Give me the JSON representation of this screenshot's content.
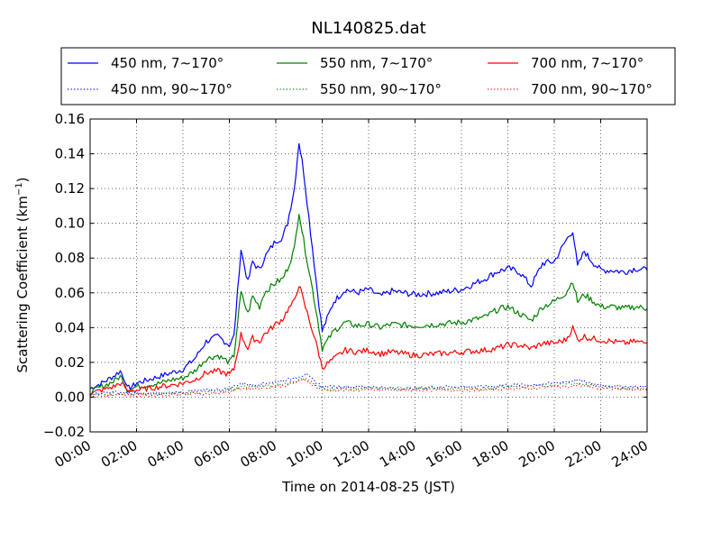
{
  "chart_data": {
    "type": "line",
    "title": "NL140825.dat",
    "xlabel": "Time on 2014-08-25 (JST)",
    "ylabel_main": "Scattering Coefficient (km",
    "ylabel_exp": "−1",
    "ylabel_tail": ")",
    "x_unit": "hour",
    "xlim": [
      0,
      24
    ],
    "ylim": [
      -0.02,
      0.16
    ],
    "grid": true,
    "legend_position": "above plot, three columns",
    "x_ticks": [
      {
        "value": 0,
        "label": "00:00"
      },
      {
        "value": 2,
        "label": "02:00"
      },
      {
        "value": 4,
        "label": "04:00"
      },
      {
        "value": 6,
        "label": "06:00"
      },
      {
        "value": 8,
        "label": "08:00"
      },
      {
        "value": 10,
        "label": "10:00"
      },
      {
        "value": 12,
        "label": "12:00"
      },
      {
        "value": 14,
        "label": "14:00"
      },
      {
        "value": 16,
        "label": "16:00"
      },
      {
        "value": 18,
        "label": "18:00"
      },
      {
        "value": 20,
        "label": "20:00"
      },
      {
        "value": 22,
        "label": "22:00"
      },
      {
        "value": 24,
        "label": "24:00"
      }
    ],
    "y_ticks": [
      {
        "value": -0.02,
        "label": "−0.02"
      },
      {
        "value": 0.0,
        "label": "0.00"
      },
      {
        "value": 0.02,
        "label": "0.02"
      },
      {
        "value": 0.04,
        "label": "0.04"
      },
      {
        "value": 0.06,
        "label": "0.06"
      },
      {
        "value": 0.08,
        "label": "0.08"
      },
      {
        "value": 0.1,
        "label": "0.10"
      },
      {
        "value": 0.12,
        "label": "0.12"
      },
      {
        "value": 0.14,
        "label": "0.14"
      },
      {
        "value": 0.16,
        "label": "0.16"
      }
    ],
    "series": [
      {
        "name": "450 nm, 7∼170°",
        "color": "#0000ff",
        "style": "solid",
        "x": [
          0,
          0.5,
          1,
          1.3,
          1.5,
          1.6,
          1.8,
          2,
          2.5,
          3,
          3.5,
          4,
          4.5,
          5,
          5.5,
          6,
          6.2,
          6.5,
          6.8,
          7,
          7.3,
          7.5,
          8,
          8.3,
          8.5,
          8.8,
          9,
          9.2,
          9.5,
          9.8,
          10,
          10.5,
          11,
          11.5,
          12,
          12.5,
          13,
          14,
          15,
          16,
          17,
          17.5,
          18,
          18.5,
          19,
          19.5,
          20,
          20.5,
          20.8,
          21,
          21.3,
          21.5,
          22,
          22.5,
          23,
          23.5,
          24
        ],
        "y": [
          0.005,
          0.008,
          0.012,
          0.015,
          0.01,
          0.005,
          0.006,
          0.008,
          0.01,
          0.012,
          0.014,
          0.016,
          0.022,
          0.032,
          0.035,
          0.03,
          0.035,
          0.085,
          0.066,
          0.078,
          0.073,
          0.08,
          0.09,
          0.092,
          0.1,
          0.12,
          0.147,
          0.13,
          0.095,
          0.06,
          0.038,
          0.055,
          0.062,
          0.06,
          0.062,
          0.058,
          0.061,
          0.059,
          0.06,
          0.062,
          0.068,
          0.072,
          0.074,
          0.072,
          0.064,
          0.077,
          0.078,
          0.09,
          0.096,
          0.075,
          0.084,
          0.08,
          0.073,
          0.073,
          0.072,
          0.074,
          0.073
        ]
      },
      {
        "name": "550 nm, 7∼170°",
        "color": "#008000",
        "style": "solid",
        "x": [
          0,
          0.5,
          1,
          1.3,
          1.5,
          1.6,
          1.8,
          2,
          2.5,
          3,
          3.5,
          4,
          4.5,
          5,
          5.5,
          6,
          6.2,
          6.5,
          6.8,
          7,
          7.3,
          7.5,
          8,
          8.3,
          8.5,
          8.8,
          9,
          9.2,
          9.5,
          9.8,
          10,
          10.5,
          11,
          11.5,
          12,
          12.5,
          13,
          14,
          15,
          16,
          17,
          17.5,
          18,
          18.5,
          19,
          19.5,
          20,
          20.5,
          20.8,
          21,
          21.3,
          21.5,
          22,
          22.5,
          23,
          23.5,
          24
        ],
        "y": [
          0.003,
          0.006,
          0.009,
          0.012,
          0.008,
          0.004,
          0.005,
          0.006,
          0.007,
          0.008,
          0.01,
          0.011,
          0.015,
          0.022,
          0.024,
          0.02,
          0.024,
          0.06,
          0.048,
          0.058,
          0.052,
          0.06,
          0.066,
          0.068,
          0.074,
          0.085,
          0.107,
          0.09,
          0.068,
          0.045,
          0.028,
          0.038,
          0.043,
          0.041,
          0.042,
          0.04,
          0.042,
          0.041,
          0.042,
          0.043,
          0.046,
          0.05,
          0.052,
          0.048,
          0.044,
          0.052,
          0.055,
          0.06,
          0.067,
          0.055,
          0.059,
          0.057,
          0.052,
          0.052,
          0.051,
          0.052,
          0.051
        ]
      },
      {
        "name": "700 nm, 7∼170°",
        "color": "#ff0000",
        "style": "solid",
        "x": [
          0,
          0.5,
          1,
          1.3,
          1.5,
          1.6,
          1.8,
          2,
          2.5,
          3,
          3.5,
          4,
          4.5,
          5,
          5.5,
          6,
          6.2,
          6.5,
          6.8,
          7,
          7.3,
          7.5,
          8,
          8.3,
          8.5,
          8.8,
          9,
          9.2,
          9.5,
          9.8,
          10,
          10.5,
          11,
          11.5,
          12,
          12.5,
          13,
          14,
          15,
          16,
          17,
          17.5,
          18,
          18.5,
          19,
          19.5,
          20,
          20.5,
          20.8,
          21,
          21.3,
          21.5,
          22,
          22.5,
          23,
          23.5,
          24
        ],
        "y": [
          0.002,
          0.004,
          0.006,
          0.008,
          0.006,
          0.003,
          0.004,
          0.004,
          0.005,
          0.006,
          0.007,
          0.008,
          0.01,
          0.014,
          0.015,
          0.013,
          0.016,
          0.036,
          0.028,
          0.034,
          0.032,
          0.036,
          0.042,
          0.045,
          0.05,
          0.055,
          0.065,
          0.055,
          0.042,
          0.028,
          0.017,
          0.022,
          0.027,
          0.026,
          0.027,
          0.025,
          0.026,
          0.024,
          0.025,
          0.026,
          0.027,
          0.028,
          0.03,
          0.03,
          0.028,
          0.031,
          0.031,
          0.033,
          0.04,
          0.033,
          0.035,
          0.034,
          0.033,
          0.032,
          0.031,
          0.032,
          0.031
        ]
      },
      {
        "name": "450 nm, 90∼170°",
        "color": "#0000ff",
        "style": "dotted",
        "x": [
          0,
          1,
          2,
          3,
          4,
          5,
          6,
          6.5,
          7,
          8,
          8.5,
          9,
          9.3,
          9.6,
          10,
          11,
          12,
          13,
          14,
          15,
          16,
          17,
          18,
          19,
          20,
          20.5,
          21,
          21.5,
          22,
          23,
          24
        ],
        "y": [
          0.002,
          0.003,
          0.002,
          0.002,
          0.003,
          0.004,
          0.005,
          0.008,
          0.007,
          0.009,
          0.01,
          0.012,
          0.013,
          0.01,
          0.006,
          0.006,
          0.006,
          0.005,
          0.005,
          0.006,
          0.006,
          0.006,
          0.007,
          0.007,
          0.008,
          0.009,
          0.01,
          0.008,
          0.007,
          0.006,
          0.006
        ]
      },
      {
        "name": "550 nm, 90∼170°",
        "color": "#008000",
        "style": "dotted",
        "x": [
          0,
          1,
          2,
          3,
          4,
          5,
          6,
          6.5,
          7,
          8,
          8.5,
          9,
          9.3,
          9.6,
          10,
          11,
          12,
          13,
          14,
          15,
          16,
          17,
          18,
          19,
          20,
          20.5,
          21,
          21.5,
          22,
          23,
          24
        ],
        "y": [
          0.001,
          0.002,
          0.002,
          0.002,
          0.002,
          0.003,
          0.004,
          0.006,
          0.006,
          0.007,
          0.008,
          0.01,
          0.011,
          0.008,
          0.005,
          0.005,
          0.005,
          0.005,
          0.005,
          0.005,
          0.005,
          0.005,
          0.006,
          0.006,
          0.007,
          0.008,
          0.008,
          0.007,
          0.006,
          0.005,
          0.005
        ]
      },
      {
        "name": "700 nm, 90∼170°",
        "color": "#ff0000",
        "style": "dotted",
        "x": [
          0,
          1,
          2,
          3,
          4,
          5,
          6,
          6.5,
          7,
          8,
          8.5,
          9,
          9.3,
          9.6,
          10,
          11,
          12,
          13,
          14,
          15,
          16,
          17,
          18,
          19,
          20,
          20.5,
          21,
          21.5,
          22,
          23,
          24
        ],
        "y": [
          0.0,
          0.001,
          0.001,
          0.001,
          0.002,
          0.002,
          0.003,
          0.005,
          0.005,
          0.006,
          0.007,
          0.009,
          0.01,
          0.007,
          0.004,
          0.004,
          0.004,
          0.004,
          0.004,
          0.004,
          0.004,
          0.004,
          0.005,
          0.005,
          0.006,
          0.006,
          0.007,
          0.006,
          0.005,
          0.005,
          0.004
        ]
      }
    ]
  }
}
